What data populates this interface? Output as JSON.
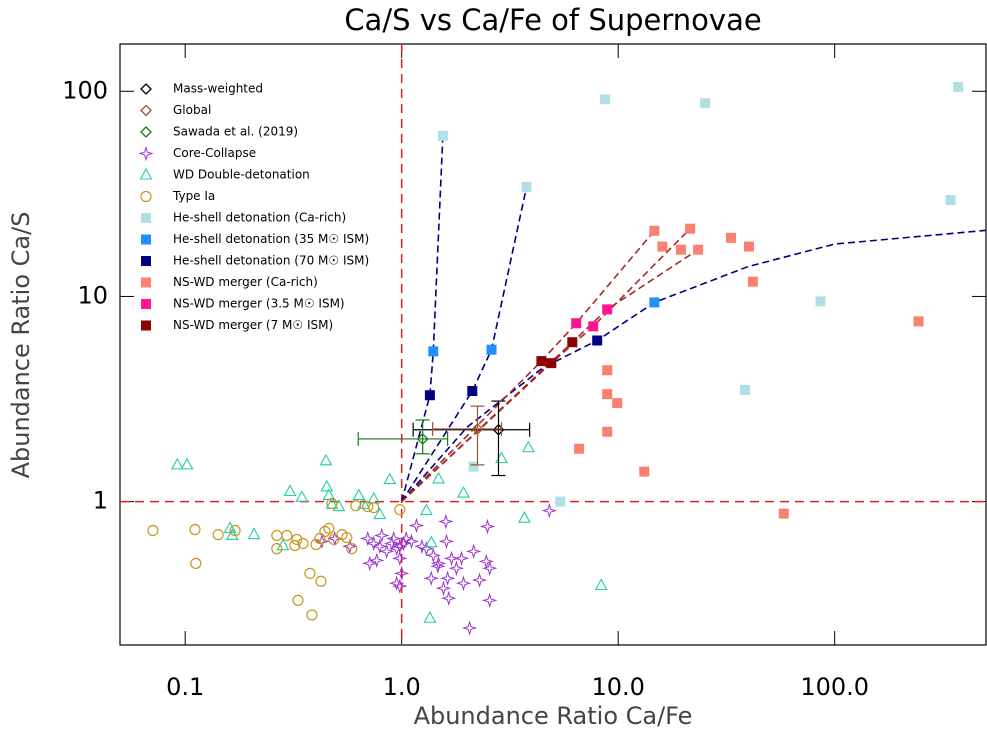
{
  "chart_data": {
    "type": "scatter",
    "title": "Ca/S vs Ca/Fe of Supernovae",
    "xlabel": "Abundance Ratio Ca/Fe",
    "ylabel": "Abundance Ratio Ca/S",
    "xscale": "log",
    "yscale": "log",
    "xlim": [
      0.05,
      500
    ],
    "ylim": [
      0.2,
      170
    ],
    "xticks": [
      0.1,
      {
        "value": 1,
        "label": "1.0"
      },
      {
        "value": 10,
        "label": "10.0"
      },
      {
        "value": 100,
        "label": "100.0"
      }
    ],
    "yticks": [
      1,
      10,
      100
    ],
    "legend": "upper left",
    "reference_lines": {
      "color": "#e02020",
      "x": [
        1
      ],
      "y": [
        1
      ]
    },
    "mixing_lines": [
      {
        "color": "#000080",
        "x": [
          1,
          1.35,
          1.4,
          1.55
        ],
        "y": [
          1,
          3.3,
          5.4,
          61
        ]
      },
      {
        "color": "#000080",
        "x": [
          1,
          2.12,
          2.6,
          3.77
        ],
        "y": [
          1,
          3.46,
          5.5,
          34
        ]
      },
      {
        "color": "#000080",
        "x": [
          1,
          2,
          4.5,
          8,
          14.7,
          40,
          100,
          500
        ],
        "y": [
          1,
          2.3,
          4.5,
          6.1,
          9.35,
          14,
          18,
          21
        ]
      },
      {
        "color": "#a52a2a",
        "x": [
          1,
          4.42,
          6.4,
          14.7
        ],
        "y": [
          1,
          4.84,
          7.4,
          20.9
        ]
      },
      {
        "color": "#a52a2a",
        "x": [
          1,
          4.91,
          7.67,
          21.5
        ],
        "y": [
          1,
          4.73,
          7.15,
          21.4
        ]
      },
      {
        "color": "#a52a2a",
        "x": [
          1,
          6.14,
          8.9,
          23.4
        ],
        "y": [
          1,
          5.98,
          8.65,
          16.9
        ]
      }
    ],
    "series": [
      {
        "name": "Mass-weighted",
        "color": "#000000",
        "marker": "diamond",
        "x": [
          2.8
        ],
        "y": [
          2.24
        ],
        "xlow": [
          1.13
        ],
        "xhigh": [
          3.9
        ],
        "ylow": [
          1.34
        ],
        "yhigh": [
          3.09
        ]
      },
      {
        "name": "Global",
        "color": "#a0522d",
        "marker": "diamond",
        "x": [
          2.24
        ],
        "y": [
          2.26
        ],
        "xlow": [
          1.39
        ],
        "xhigh": [
          2.89
        ],
        "ylow": [
          1.51
        ],
        "yhigh": [
          2.92
        ]
      },
      {
        "name": "Sawada et al. (2019)",
        "color": "#1a7a1a",
        "marker": "diamond",
        "x": [
          1.25
        ],
        "y": [
          2.02
        ],
        "xlow": [
          0.63
        ],
        "xhigh": [
          1.63
        ],
        "ylow": [
          1.71
        ],
        "yhigh": [
          2.5
        ]
      },
      {
        "name": "Core-Collapse",
        "color": "#9932cc",
        "marker": "star",
        "x": [
          0.428,
          0.491,
          0.576,
          0.697,
          0.743,
          0.792,
          0.809,
          0.767,
          0.712,
          0.853,
          0.9,
          0.919,
          0.948,
          0.98,
          0.98,
          1.0,
          0.98,
          0.948,
          1.02,
          1.05,
          1.11,
          1.17,
          1.24,
          1.3,
          1.4,
          1.48,
          1.6,
          1.7,
          1.79,
          1.89,
          1.63,
          1.56,
          1.65,
          2.15,
          2.46,
          2.55,
          2.29,
          2.55,
          2.06,
          2.49,
          4.81,
          1.47,
          1.37,
          1.61,
          1.93
        ],
        "y": [
          0.64,
          0.661,
          0.605,
          0.661,
          0.625,
          0.605,
          0.684,
          0.517,
          0.5,
          0.572,
          0.625,
          0.661,
          0.59,
          0.605,
          0.529,
          0.447,
          0.387,
          0.4,
          0.625,
          0.661,
          0.64,
          0.765,
          0.605,
          0.59,
          0.547,
          0.5,
          0.8,
          0.529,
          0.473,
          0.529,
          0.423,
          0.378,
          0.338,
          0.572,
          0.511,
          0.473,
          0.414,
          0.33,
          0.242,
          0.756,
          0.904,
          0.484,
          0.423,
          0.64,
          0.4
        ]
      },
      {
        "name": "WD Double-detonation",
        "color": "#20d0a0",
        "marker": "triangle",
        "x": [
          0.092,
          0.102,
          0.161,
          0.165,
          0.208,
          0.305,
          0.346,
          0.283,
          0.447,
          0.451,
          0.461,
          0.476,
          0.513,
          0.634,
          0.668,
          0.743,
          0.792,
          0.881,
          1.3,
          1.37,
          1.48,
          1.93,
          2.89,
          3.85,
          3.69,
          8.35,
          1.35
        ],
        "y": [
          1.51,
          1.51,
          0.74,
          0.684,
          0.69,
          1.12,
          1.05,
          0.61,
          1.58,
          1.18,
          1.07,
          0.97,
          0.946,
          1.07,
          0.97,
          1.03,
          0.865,
          1.28,
          0.904,
          0.63,
          1.29,
          1.1,
          1.62,
          1.83,
          0.83,
          0.39,
          0.27
        ]
      },
      {
        "name": "Type Ia",
        "color": "#c8961e",
        "marker": "circle",
        "x": [
          0.071,
          0.111,
          0.112,
          0.142,
          0.17,
          0.265,
          0.265,
          0.295,
          0.328,
          0.321,
          0.35,
          0.402,
          0.419,
          0.442,
          0.461,
          0.486,
          0.53,
          0.558,
          0.377,
          0.424,
          0.332,
          0.385,
          0.588,
          0.614,
          0.697,
          0.743,
          0.98,
          0.476
        ],
        "y": [
          0.723,
          0.731,
          0.5,
          0.69,
          0.723,
          0.684,
          0.59,
          0.684,
          0.654,
          0.611,
          0.625,
          0.618,
          0.661,
          0.715,
          0.74,
          0.654,
          0.69,
          0.668,
          0.447,
          0.409,
          0.33,
          0.28,
          0.59,
          0.956,
          0.946,
          0.935,
          0.914,
          0.978
        ]
      },
      {
        "name": "He-shell detonation (Ca-rich)",
        "color": "#b0e0e6",
        "marker": "square",
        "x": [
          1.55,
          8.7,
          25.2,
          372,
          3.77,
          343,
          86,
          38.5,
          2.15,
          5.4
        ],
        "y": [
          60.6,
          91.4,
          87.5,
          105,
          34.2,
          29.5,
          9.46,
          3.5,
          1.48,
          1.0
        ]
      },
      {
        "name": "He-shell detonation (35 M☉ ISM)",
        "color": "#1e90ff",
        "marker": "square",
        "x": [
          1.4,
          2.6,
          14.7
        ],
        "y": [
          5.4,
          5.5,
          9.35
        ]
      },
      {
        "name": "He-shell detonation (70 M☉ ISM)",
        "color": "#000080",
        "marker": "square",
        "x": [
          1.35,
          2.12,
          8.0
        ],
        "y": [
          3.3,
          3.46,
          6.1
        ]
      },
      {
        "name": "NS-WD merger (Ca-rich)",
        "color": "#fa8072",
        "marker": "square",
        "x": [
          14.7,
          21.5,
          16,
          19.5,
          23.4,
          33.2,
          40.2,
          41.9,
          244,
          8.9,
          8.9,
          9.9,
          8.9,
          6.6,
          13.2,
          58.2
        ],
        "y": [
          20.9,
          21.4,
          17.5,
          16.9,
          16.9,
          19.3,
          17.5,
          11.8,
          7.56,
          4.37,
          3.34,
          3.02,
          2.19,
          1.81,
          1.4,
          0.874
        ]
      },
      {
        "name": "NS-WD merger (3.5 M☉ ISM)",
        "color": "#ff1493",
        "marker": "square",
        "x": [
          6.4,
          7.67,
          8.9
        ],
        "y": [
          7.4,
          7.15,
          8.65
        ]
      },
      {
        "name": "NS-WD merger (7 M☉ ISM)",
        "color": "#8b0000",
        "marker": "square",
        "x": [
          4.42,
          4.91,
          6.14
        ],
        "y": [
          4.84,
          4.73,
          5.98
        ]
      }
    ]
  }
}
